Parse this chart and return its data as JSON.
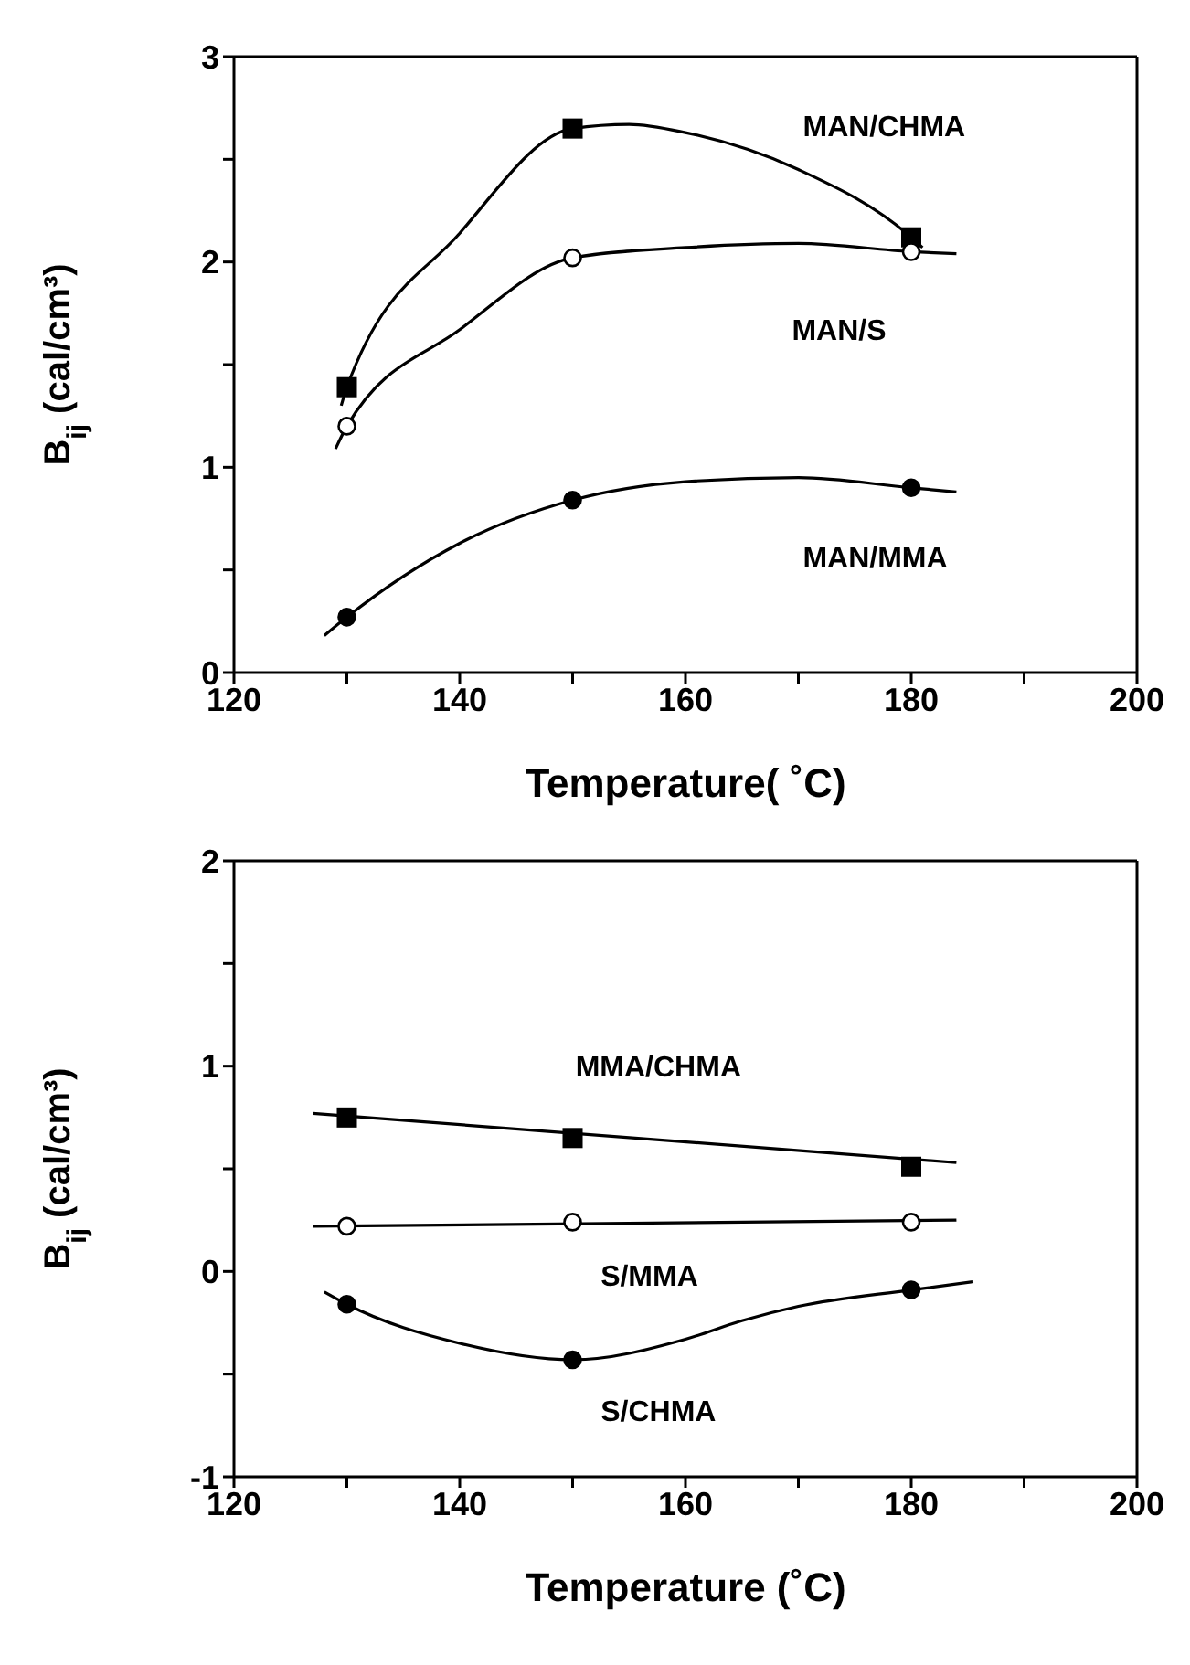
{
  "chart_data": [
    {
      "type": "scatter",
      "xlabel": "Temperature( ˚C)",
      "ylabel": "B$_{ij}$ (cal/cm³)",
      "xlim": [
        120,
        200
      ],
      "ylim": [
        0,
        3
      ],
      "xticks": [
        120,
        {
          "value": 130,
          "label": null
        },
        140,
        {
          "value": 150,
          "label": null
        },
        160,
        {
          "value": 170,
          "label": null
        },
        180,
        {
          "value": 190,
          "label": null
        },
        200
      ],
      "yticks": [
        0,
        {
          "value": 0.5,
          "label": null
        },
        1,
        {
          "value": 1.5,
          "label": null
        },
        2,
        {
          "value": 2.5,
          "label": null
        },
        3
      ],
      "series": [
        {
          "marker": "square",
          "color": "#000000",
          "x": [
            130,
            150,
            180
          ],
          "values": [
            1.39,
            2.65,
            2.12
          ]
        },
        {
          "marker": "circle",
          "color": "#ffffff",
          "x": [
            130,
            150,
            180
          ],
          "values": [
            1.2,
            2.02,
            2.05
          ]
        },
        {
          "marker": "circle",
          "color": "#000000",
          "x": [
            130,
            150,
            180
          ],
          "values": [
            0.27,
            0.84,
            0.9
          ]
        },
        {
          "type": "line",
          "marker": "none",
          "color": "#000000",
          "x": [
            129.5,
            130,
            140,
            150,
            155,
            160,
            170,
            180,
            181
          ],
          "values": [
            1.3,
            1.39,
            2.14,
            2.65,
            2.67,
            2.63,
            2.45,
            2.12,
            2.07
          ]
        },
        {
          "type": "line",
          "marker": "none",
          "color": "#000000",
          "x": [
            129,
            130,
            140,
            150,
            160,
            170,
            180,
            184
          ],
          "values": [
            1.09,
            1.2,
            1.67,
            2.02,
            2.07,
            2.09,
            2.05,
            2.04
          ]
        },
        {
          "type": "line",
          "marker": "none",
          "color": "#000000",
          "x": [
            128,
            130,
            140,
            150,
            160,
            170,
            180,
            184
          ],
          "values": [
            0.18,
            0.27,
            0.63,
            0.84,
            0.93,
            0.95,
            0.9,
            0.88
          ]
        }
      ],
      "annotations": [
        "MAN/CHMA",
        "MAN/S",
        "MAN/MMA"
      ]
    },
    {
      "type": "scatter",
      "xlabel": "Temperature (˚C)",
      "ylabel": "B$_{ij}$ (cal/cm³)",
      "xlim": [
        120,
        200
      ],
      "ylim": [
        -1,
        2
      ],
      "xticks": [
        120,
        {
          "value": 130,
          "label": null
        },
        140,
        {
          "value": 150,
          "label": null
        },
        160,
        {
          "value": 170,
          "label": null
        },
        180,
        {
          "value": 190,
          "label": null
        },
        200
      ],
      "yticks": [
        -1,
        {
          "value": -0.5,
          "label": null
        },
        0,
        {
          "value": 0.5,
          "label": null
        },
        1,
        {
          "value": 1.5,
          "label": null
        },
        2
      ],
      "series": [
        {
          "marker": "square",
          "color": "#000000",
          "x": [
            130,
            150,
            180
          ],
          "values": [
            0.75,
            0.65,
            0.51
          ]
        },
        {
          "marker": "circle",
          "color": "#ffffff",
          "x": [
            130,
            150,
            180
          ],
          "values": [
            0.22,
            0.24,
            0.24
          ]
        },
        {
          "marker": "circle",
          "color": "#000000",
          "x": [
            130,
            150,
            180
          ],
          "values": [
            -0.16,
            -0.43,
            -0.09
          ]
        },
        {
          "type": "line",
          "marker": "none",
          "color": "#000000",
          "x": [
            127,
            184
          ],
          "values": [
            0.77,
            0.53
          ]
        },
        {
          "type": "line",
          "marker": "none",
          "color": "#000000",
          "x": [
            127,
            184
          ],
          "values": [
            0.22,
            0.25
          ]
        },
        {
          "type": "line",
          "marker": "none",
          "color": "#000000",
          "x": [
            128,
            130,
            140,
            150,
            160,
            165,
            170,
            180,
            185.5
          ],
          "values": [
            -0.1,
            -0.16,
            -0.35,
            -0.43,
            -0.33,
            -0.24,
            -0.17,
            -0.09,
            -0.05
          ]
        }
      ],
      "annotations": [
        "MMA/CHMA",
        "S/MMA",
        "S/CHMA"
      ]
    }
  ]
}
